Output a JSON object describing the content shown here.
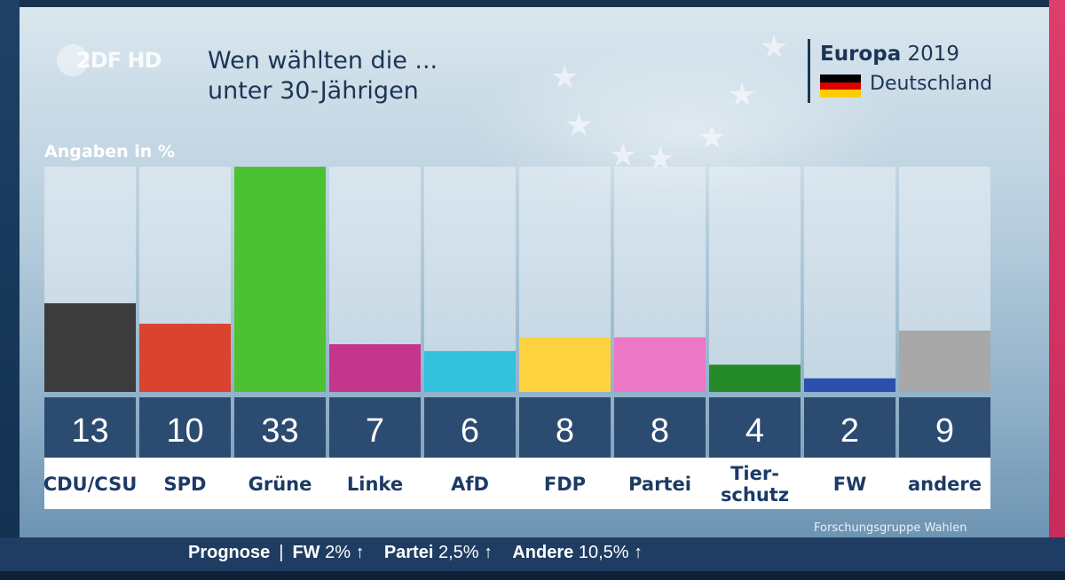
{
  "header": {
    "logo_text": "2DF HD",
    "title_line1": "Wen wählten die ...",
    "title_line2": "unter 30-Jährigen",
    "brand_bold": "Europa",
    "brand_year": "2019",
    "brand_country": "Deutschland",
    "flag_colors": [
      "#000000",
      "#dd0000",
      "#ffce00"
    ]
  },
  "chart_data": {
    "type": "bar",
    "title": "Wen wählten die ... unter 30-Jährigen",
    "ylabel": "Angaben in %",
    "ylim": [
      0,
      33
    ],
    "grid": false,
    "categories": [
      "CDU/CSU",
      "SPD",
      "Grüne",
      "Linke",
      "AfD",
      "FDP",
      "Partei",
      "Tier-\nschutz",
      "FW",
      "andere"
    ],
    "values": [
      13,
      10,
      33,
      7,
      6,
      8,
      8,
      4,
      2,
      9
    ],
    "colors": [
      "#3c3c3c",
      "#d9432f",
      "#4cc232",
      "#c3368c",
      "#33c1de",
      "#fdd23f",
      "#ec77c6",
      "#258a2a",
      "#2c4fb0",
      "#a8a8a8"
    ]
  },
  "footer": {
    "source": "Forschungsgruppe Wahlen",
    "ticker_label": "Prognose",
    "ticker_separator": "|",
    "ticker_items": [
      {
        "label": "FW",
        "value": "2%",
        "arrow": "↑"
      },
      {
        "label": "Partei",
        "value": "2,5%",
        "arrow": "↑"
      },
      {
        "label": "Andere",
        "value": "10,5%",
        "arrow": "↑"
      }
    ]
  }
}
